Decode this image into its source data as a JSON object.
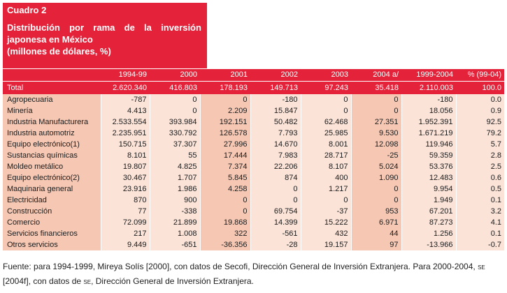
{
  "title": {
    "number": "Cuadro 2",
    "line1_words": [
      "Distribución",
      "por",
      "rama",
      "de",
      "la",
      "inversión"
    ],
    "line2": "japonesa en México",
    "line3": "(millones de dólares, %)"
  },
  "table": {
    "header_years": [
      "1994-99",
      "2000",
      "2001",
      "2002",
      "2003",
      "2004 a/",
      "1999-2004",
      "% (99-04)"
    ],
    "total_label": "Total",
    "total_values": [
      "2.620.340",
      "416.803",
      "178.193",
      "149.713",
      "97.243",
      "35.418",
      "2.110.003",
      "100.0"
    ],
    "rows": [
      {
        "label": "Agropecuaria",
        "values": [
          "-787",
          "0",
          "0",
          "-180",
          "0",
          "0",
          "-180",
          "0.0"
        ]
      },
      {
        "label": "Minería",
        "values": [
          "4.413",
          "0",
          "2.209",
          "15.847",
          "0",
          "0",
          "18.056",
          "0.9"
        ]
      },
      {
        "label": "Industria Manufacturera",
        "values": [
          "2.533.554",
          "393.984",
          "192.151",
          "50.482",
          "62.468",
          "27.351",
          "1.952.391",
          "92.5"
        ]
      },
      {
        "label": "Industria automotriz",
        "values": [
          "2.235.951",
          "330.792",
          "126.578",
          "7.793",
          "25.985",
          "9.530",
          "1.671.219",
          "79.2"
        ]
      },
      {
        "label": "Equipo electrónico(1)",
        "values": [
          "150.715",
          "37.307",
          "27.996",
          "14.670",
          "8.001",
          "12.098",
          "119.946",
          "5.7"
        ]
      },
      {
        "label": "Sustancias químicas",
        "values": [
          "8.101",
          "55",
          "17.444",
          "7.983",
          "28.717",
          "-25",
          "59.359",
          "2.8"
        ]
      },
      {
        "label": "Moldeo metálico",
        "values": [
          "19.807",
          "4.825",
          "7.374",
          "22.206",
          "8.107",
          "5.024",
          "53.376",
          "2.5"
        ]
      },
      {
        "label": "Equipo electrónico(2)",
        "values": [
          "30.467",
          "1.707",
          "5.845",
          "874",
          "400",
          "1.090",
          "12.483",
          "0.6"
        ]
      },
      {
        "label": "Maquinaria general",
        "values": [
          "23.916",
          "1.986",
          "4.258",
          "0",
          "1.217",
          "0",
          "9.954",
          "0.5"
        ]
      },
      {
        "label": "Electricidad",
        "values": [
          "870",
          "900",
          "0",
          "0",
          "0",
          "0",
          "1.949",
          "0.1"
        ]
      },
      {
        "label": "Construcción",
        "values": [
          "77",
          "-338",
          "0",
          "69.754",
          "-37",
          "953",
          "67.201",
          "3.2"
        ]
      },
      {
        "label": "Comercio",
        "values": [
          "72.099",
          "21.899",
          "19.868",
          "14.399",
          "15.222",
          "6.971",
          "87.273",
          "4.1"
        ]
      },
      {
        "label": "Servicios financieros",
        "values": [
          "217",
          "1.008",
          "322",
          "-561",
          "432",
          "44",
          "1.256",
          "0.1"
        ]
      },
      {
        "label": "Otros servicios",
        "values": [
          "9.449",
          "-651",
          "-36.356",
          "-28",
          "19.157",
          "97",
          "-13.966",
          "-0.7"
        ]
      }
    ]
  },
  "footer": {
    "part1": "Fuente: para 1994-1999, Mireya Solís [2000], con datos de Secofi, Dirección General de Inversión Extranjera. Para 2000-2004, ",
    "sc1": "SE",
    "part2": " [2004f], con datos de ",
    "sc2": "SE",
    "part3": ", Dirección General de Inversión Extranjera."
  },
  "colors": {
    "accent": "#e4233b",
    "row_light": "#fbe3d8",
    "row_dark": "#f6c8b4"
  }
}
